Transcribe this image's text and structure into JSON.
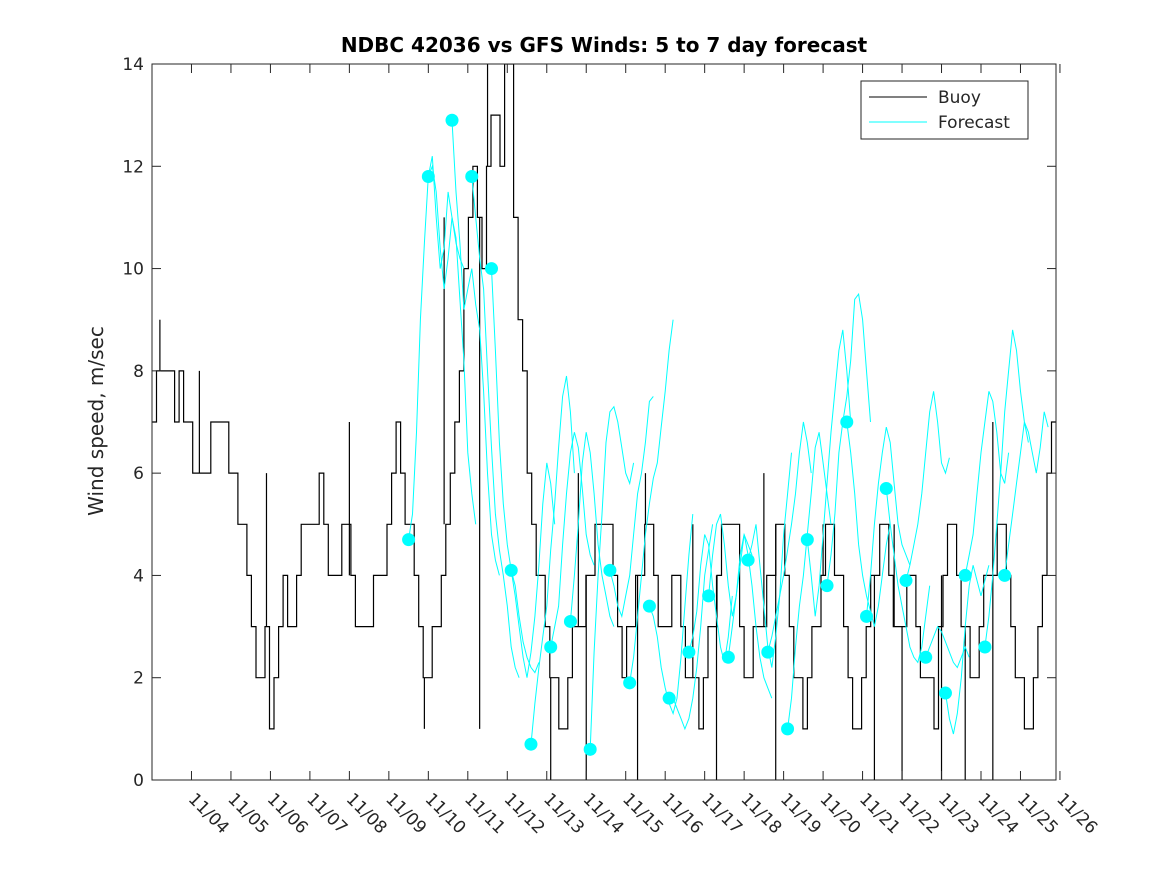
{
  "chart_data": {
    "type": "line",
    "title": "NDBC 42036 vs GFS Winds: 5 to 7 day forecast",
    "xlabel": "",
    "ylabel": "Wind speed, m/sec",
    "ylim": [
      0,
      14
    ],
    "xlim": [
      -1,
      21.9
    ],
    "yticks": [
      0,
      2,
      4,
      6,
      8,
      10,
      12,
      14
    ],
    "xtick_labels": [
      "11/04",
      "11/05",
      "11/06",
      "11/07",
      "11/08",
      "11/09",
      "11/10",
      "11/11",
      "11/12",
      "11/13",
      "11/14",
      "11/15",
      "11/16",
      "11/17",
      "11/18",
      "11/19",
      "11/20",
      "11/21",
      "11/22",
      "11/23",
      "11/24",
      "11/25",
      "11/26"
    ],
    "legend": {
      "position": "top-right",
      "entries": [
        "Buoy",
        "Forecast"
      ]
    },
    "colors": {
      "buoy": "#000000",
      "forecast": "#00FFFF",
      "axis": "#262626"
    },
    "buoy_series": {
      "name": "Buoy",
      "values": [
        7,
        8,
        8,
        8,
        8,
        7,
        8,
        7,
        7,
        6,
        6,
        6,
        6,
        7,
        7,
        7,
        7,
        6,
        6,
        5,
        5,
        4,
        3,
        2,
        2,
        3,
        1,
        2,
        3,
        4,
        3,
        3,
        4,
        5,
        5,
        5,
        5,
        6,
        5,
        4,
        4,
        4,
        5,
        5,
        4,
        3,
        3,
        3,
        3,
        4,
        4,
        4,
        5,
        6,
        7,
        6,
        5,
        5,
        4,
        3,
        2,
        2,
        3,
        3,
        4,
        5,
        6,
        7,
        8,
        10,
        11,
        12,
        11,
        10,
        12,
        13,
        13,
        12,
        14,
        14,
        11,
        9,
        8,
        6,
        5,
        4,
        4,
        3,
        2,
        2,
        1,
        1,
        2,
        3,
        3,
        3,
        4,
        4,
        5,
        5,
        5,
        5,
        4,
        3,
        2,
        3,
        3,
        4,
        4,
        5,
        5,
        4,
        3,
        3,
        3,
        4,
        4,
        3,
        2,
        2,
        2,
        1,
        2,
        3,
        3,
        4,
        5,
        5,
        5,
        5,
        3,
        2,
        2,
        3,
        3,
        3,
        4,
        4,
        5,
        5,
        4,
        3,
        2,
        2,
        1,
        2,
        3,
        3,
        4,
        5,
        5,
        4,
        4,
        3,
        2,
        1,
        1,
        2,
        3,
        4,
        4,
        5,
        5,
        4,
        3,
        3,
        3,
        4,
        4,
        3,
        2,
        2,
        2,
        1,
        3,
        4,
        5,
        5,
        4,
        3,
        3,
        2,
        2,
        3,
        4,
        4,
        4,
        5,
        5,
        4,
        3,
        2,
        2,
        1,
        1,
        2,
        3,
        4,
        6,
        7
      ],
      "spikes_down": [
        [
          5.9,
          1
        ],
        [
          7.3,
          1
        ],
        [
          9.1,
          0
        ],
        [
          10.0,
          0
        ],
        [
          11.3,
          0
        ],
        [
          13.3,
          0
        ],
        [
          14.8,
          0
        ],
        [
          17.3,
          0
        ],
        [
          18.0,
          0
        ],
        [
          19.0,
          0
        ],
        [
          19.6,
          0
        ],
        [
          20.3,
          0
        ]
      ],
      "spikes_up": [
        [
          -0.8,
          9
        ],
        [
          0.2,
          8
        ],
        [
          1.9,
          6
        ],
        [
          4.0,
          7
        ],
        [
          6.4,
          11
        ],
        [
          7.5,
          14
        ],
        [
          8.5,
          6
        ],
        [
          9.8,
          6
        ],
        [
          11.5,
          6
        ],
        [
          12.7,
          5
        ],
        [
          14.5,
          6
        ],
        [
          16.0,
          5
        ],
        [
          17.8,
          5
        ],
        [
          19.3,
          5
        ],
        [
          20.3,
          7
        ]
      ]
    },
    "forecast_runs": [
      {
        "start": 5.5,
        "values": [
          4.7,
          5.2,
          6.8,
          9.0,
          10.5,
          11.8,
          12.2,
          11.0,
          10.0,
          10.4,
          11.5,
          11.0,
          10.5,
          10.2,
          10.0
        ]
      },
      {
        "start": 6.0,
        "values": [
          11.8,
          12.0,
          11.5,
          10.4,
          9.6,
          10.2,
          11.0,
          10.6,
          9.4,
          8.2,
          6.4,
          5.6,
          5.0
        ]
      },
      {
        "start": 6.6,
        "values": [
          12.9,
          11.5,
          10.5,
          9.2,
          9.6,
          10.0,
          9.3,
          8.8,
          7.6,
          6.0,
          4.8,
          4.3,
          4.0
        ]
      },
      {
        "start": 7.1,
        "values": [
          11.8,
          11.0,
          10.2,
          9.6,
          8.0,
          6.5,
          5.2,
          4.5,
          4.0,
          3.4,
          2.6,
          2.2,
          2.0
        ]
      },
      {
        "start": 7.6,
        "values": [
          10.0,
          8.4,
          6.6,
          5.4,
          4.6,
          4.1,
          3.8,
          3.2,
          2.7,
          2.4,
          2.2,
          2.1,
          2.3
        ]
      },
      {
        "start": 8.1,
        "values": [
          4.1,
          3.6,
          3.0,
          2.4,
          2.0,
          2.5,
          3.2,
          4.2,
          5.4,
          6.2,
          5.8,
          5.0
        ]
      },
      {
        "start": 8.6,
        "values": [
          0.7,
          1.5,
          2.2,
          2.8,
          3.4,
          4.5,
          5.4,
          6.5,
          7.5,
          7.9,
          7.2,
          6.0
        ]
      },
      {
        "start": 9.1,
        "values": [
          2.6,
          3.0,
          3.4,
          4.6,
          5.6,
          6.4,
          6.8,
          6.5,
          5.7,
          4.8,
          4.4,
          4.2
        ]
      },
      {
        "start": 9.6,
        "values": [
          3.1,
          4.0,
          5.0,
          6.2,
          6.8,
          6.4,
          5.6,
          4.6,
          4.0,
          3.6,
          3.2,
          3.0
        ]
      },
      {
        "start": 10.1,
        "values": [
          0.6,
          2.5,
          4.0,
          5.2,
          6.6,
          7.2,
          7.3,
          7.0,
          6.5,
          6.0,
          5.8,
          6.2
        ]
      },
      {
        "start": 10.6,
        "values": [
          4.1,
          3.8,
          3.4,
          3.2,
          3.6,
          4.0,
          4.8,
          5.6,
          6.0,
          6.6,
          7.4,
          7.5
        ]
      },
      {
        "start": 11.1,
        "values": [
          1.9,
          2.4,
          3.2,
          4.0,
          4.8,
          5.4,
          5.9,
          6.2,
          6.9,
          7.6,
          8.4,
          9.0
        ]
      },
      {
        "start": 11.6,
        "values": [
          3.4,
          3.2,
          2.8,
          2.2,
          1.8,
          1.5,
          1.3,
          1.6,
          2.4,
          3.4,
          4.4,
          5.2
        ]
      },
      {
        "start": 12.1,
        "values": [
          1.6,
          1.6,
          1.4,
          1.2,
          1.0,
          1.2,
          1.6,
          2.2,
          3.0,
          4.0,
          4.5,
          5.0
        ]
      },
      {
        "start": 12.6,
        "values": [
          2.5,
          2.8,
          3.3,
          4.2,
          4.8,
          4.6,
          3.8,
          3.2,
          2.6,
          2.3,
          2.8,
          3.6
        ]
      },
      {
        "start": 13.1,
        "values": [
          3.6,
          4.4,
          5.0,
          5.2,
          4.6,
          3.8,
          3.2,
          3.6,
          4.4,
          4.8,
          4.6,
          4.4
        ]
      },
      {
        "start": 13.6,
        "values": [
          2.4,
          3.0,
          3.6,
          4.2,
          4.8,
          4.4,
          3.8,
          3.0,
          2.4,
          2.0,
          1.8,
          1.6
        ]
      },
      {
        "start": 14.1,
        "values": [
          4.3,
          4.6,
          5.0,
          4.2,
          3.4,
          2.6,
          2.2,
          2.8,
          3.6,
          4.8,
          5.6,
          6.4
        ]
      },
      {
        "start": 14.6,
        "values": [
          2.5,
          2.8,
          3.2,
          3.6,
          4.0,
          4.5,
          5.0,
          5.6,
          6.4,
          7.0,
          6.6,
          6.0
        ]
      },
      {
        "start": 15.1,
        "values": [
          1.0,
          1.6,
          2.6,
          3.4,
          4.0,
          4.8,
          5.6,
          6.5,
          6.8,
          6.2,
          5.6,
          5.0
        ]
      },
      {
        "start": 15.6,
        "values": [
          4.7,
          4.0,
          3.2,
          3.8,
          4.8,
          5.8,
          6.8,
          7.6,
          8.4,
          8.8,
          8.0,
          7.0
        ]
      },
      {
        "start": 16.1,
        "values": [
          3.8,
          4.4,
          5.2,
          6.4,
          7.0,
          7.5,
          8.2,
          9.4,
          9.5,
          9.0,
          8.0,
          7.0
        ]
      },
      {
        "start": 16.6,
        "values": [
          7.0,
          6.4,
          5.6,
          4.6,
          4.0,
          3.6,
          3.3,
          3.0,
          3.4,
          4.0,
          4.6,
          5.0
        ]
      },
      {
        "start": 17.1,
        "values": [
          3.2,
          4.0,
          5.0,
          5.8,
          6.4,
          6.9,
          6.6,
          5.8,
          5.0,
          4.6,
          4.4,
          4.2
        ]
      },
      {
        "start": 17.6,
        "values": [
          5.7,
          5.0,
          4.4,
          3.8,
          3.4,
          3.0,
          2.6,
          2.4,
          2.3,
          2.6,
          3.2,
          3.8
        ]
      },
      {
        "start": 18.1,
        "values": [
          3.9,
          4.2,
          4.6,
          5.0,
          5.6,
          6.4,
          7.2,
          7.6,
          7.0,
          6.2,
          6.0,
          6.3
        ]
      },
      {
        "start": 18.6,
        "values": [
          2.4,
          2.6,
          2.8,
          3.0,
          2.9,
          2.7,
          2.5,
          2.3,
          2.2,
          2.4,
          2.6,
          2.4
        ]
      },
      {
        "start": 19.1,
        "values": [
          1.7,
          1.2,
          0.9,
          1.3,
          2.0,
          3.0,
          3.8,
          4.2,
          3.9,
          3.6,
          3.9,
          4.2
        ]
      },
      {
        "start": 19.6,
        "values": [
          4.0,
          4.4,
          4.8,
          5.6,
          6.4,
          7.0,
          7.6,
          7.4,
          6.8,
          6.0,
          5.8,
          6.4
        ]
      },
      {
        "start": 20.1,
        "values": [
          2.6,
          3.2,
          4.0,
          5.0,
          6.0,
          7.2,
          8.0,
          8.8,
          8.4,
          7.6,
          7.0,
          6.6
        ]
      },
      {
        "start": 20.6,
        "values": [
          4.0,
          4.6,
          5.2,
          5.8,
          6.4,
          7.0,
          6.8,
          6.4,
          6.0,
          6.5,
          7.2,
          6.9
        ]
      }
    ],
    "forecast_markers": [
      [
        5.5,
        4.7
      ],
      [
        6.0,
        11.8
      ],
      [
        6.6,
        12.9
      ],
      [
        7.1,
        11.8
      ],
      [
        7.6,
        10.0
      ],
      [
        8.1,
        4.1
      ],
      [
        8.6,
        0.7
      ],
      [
        9.1,
        2.6
      ],
      [
        9.6,
        3.1
      ],
      [
        10.1,
        0.6
      ],
      [
        10.6,
        4.1
      ],
      [
        11.1,
        1.9
      ],
      [
        11.6,
        3.4
      ],
      [
        12.1,
        1.6
      ],
      [
        12.6,
        2.5
      ],
      [
        13.1,
        3.6
      ],
      [
        13.6,
        2.4
      ],
      [
        14.1,
        4.3
      ],
      [
        14.6,
        2.5
      ],
      [
        15.1,
        1.0
      ],
      [
        15.6,
        4.7
      ],
      [
        16.1,
        3.8
      ],
      [
        16.6,
        7.0
      ],
      [
        17.1,
        3.2
      ],
      [
        17.6,
        5.7
      ],
      [
        18.1,
        3.9
      ],
      [
        18.6,
        2.4
      ],
      [
        19.1,
        1.7
      ],
      [
        19.6,
        4.0
      ],
      [
        20.1,
        2.6
      ],
      [
        20.6,
        4.0
      ]
    ]
  }
}
